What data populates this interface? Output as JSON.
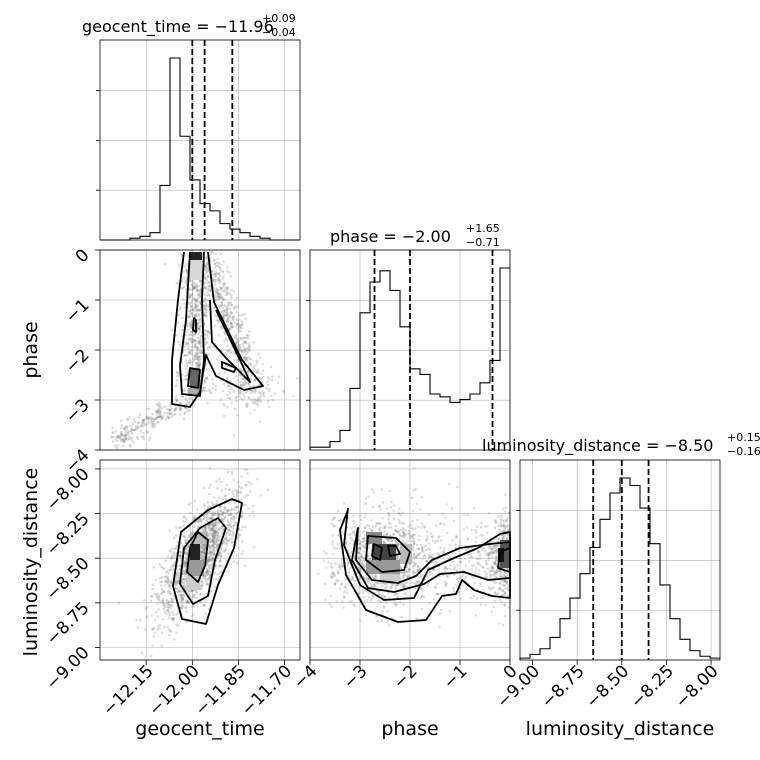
{
  "chart_data": {
    "type": "corner",
    "parameters": [
      {
        "name": "geocent_time",
        "label": "geocent_time",
        "title": {
          "prefix": "geocent_time = ",
          "value": "−11.96",
          "plus": "+0.09",
          "minus": "−0.04"
        },
        "range": [
          -12.3,
          -11.65
        ],
        "ticks": [
          -12.15,
          -12.0,
          -11.85,
          -11.7
        ],
        "tick_labels": [
          "−12.15",
          "−12.00",
          "−11.85",
          "−11.70"
        ],
        "quantiles": [
          -12.0,
          -11.96,
          -11.87
        ],
        "hist_edges_start": -12.3,
        "hist_bin_width": 0.0325,
        "hist_counts": [
          0,
          0,
          0,
          1,
          2,
          4,
          30,
          100,
          57,
          33,
          20,
          16,
          9,
          6,
          4,
          2,
          1,
          0,
          0,
          0
        ]
      },
      {
        "name": "phase",
        "label": "phase",
        "title": {
          "prefix": "phase = ",
          "value": "−2.00",
          "plus": "+1.65",
          "minus": "−0.71"
        },
        "range": [
          -4,
          0
        ],
        "ticks": [
          -4,
          -3,
          -2,
          -1,
          0
        ],
        "tick_labels": [
          "−4",
          "−3",
          "−2",
          "−1",
          "0"
        ],
        "quantiles": [
          -2.71,
          -2.0,
          -0.35
        ],
        "hist_edges_start": -4,
        "hist_bin_width": 0.2,
        "hist_counts": [
          1,
          1,
          3,
          7,
          22,
          49,
          60,
          64,
          57,
          44,
          29,
          27,
          20,
          19,
          17,
          18,
          20,
          24,
          32,
          65
        ]
      },
      {
        "name": "luminosity_distance",
        "label": "luminosity_distance",
        "title": {
          "prefix": "luminosity_distance = ",
          "value": "−8.50",
          "plus": "+0.15",
          "minus": "−0.16"
        },
        "range": [
          -9.07,
          -7.95
        ],
        "ticks": [
          -9.0,
          -8.75,
          -8.5,
          -8.25,
          -8.0
        ],
        "tick_labels": [
          "−9.00",
          "−8.75",
          "−8.50",
          "−8.25",
          "−8.00"
        ],
        "quantiles": [
          -8.66,
          -8.5,
          -8.35
        ],
        "hist_edges_start": -9.07,
        "hist_bin_width": 0.056,
        "hist_counts": [
          1,
          3,
          6,
          12,
          22,
          33,
          46,
          60,
          75,
          89,
          97,
          93,
          81,
          62,
          40,
          22,
          11,
          5,
          2,
          1
        ]
      }
    ],
    "panels_2d": [
      {
        "x": "geocent_time",
        "y": "phase"
      },
      {
        "x": "geocent_time",
        "y": "luminosity_distance"
      },
      {
        "x": "phase",
        "y": "luminosity_distance"
      }
    ],
    "grid": true
  }
}
